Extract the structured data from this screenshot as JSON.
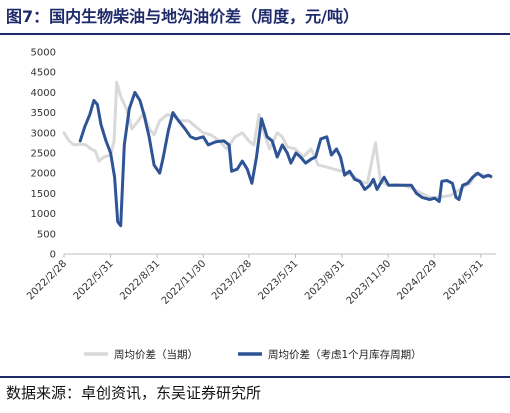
{
  "title": "图7：国内生物柴油与地沟油价差（周度，元/吨）",
  "source": "数据来源：卓创资讯，东吴证券研究所",
  "chart_data": {
    "type": "line",
    "ylim": [
      0,
      5000
    ],
    "yticks": [
      0,
      500,
      1000,
      1500,
      2000,
      2500,
      3000,
      3500,
      4000,
      4500,
      5000
    ],
    "x_dates": [
      "2022-02-28",
      "2024-06-30"
    ],
    "xtick_labels": [
      "2022/2/28",
      "2022/5/31",
      "2022/8/31",
      "2022/11/30",
      "2023/2/28",
      "2023/5/31",
      "2023/8/31",
      "2023/11/30",
      "2024/2/29",
      "2024/5/31"
    ],
    "xtick_dates": [
      "2022-02-28",
      "2022-05-31",
      "2022-08-31",
      "2022-11-30",
      "2023-02-28",
      "2023-05-31",
      "2023-08-31",
      "2023-11-30",
      "2024-02-29",
      "2024-05-31"
    ],
    "series": [
      {
        "name": "周均价差（当期）",
        "color": "#d9d9d9",
        "width": 3,
        "points": [
          [
            "2022-02-28",
            3000
          ],
          [
            "2022-03-10",
            2800
          ],
          [
            "2022-03-20",
            2700
          ],
          [
            "2022-04-01",
            2720
          ],
          [
            "2022-04-12",
            2700
          ],
          [
            "2022-04-22",
            2600
          ],
          [
            "2022-05-01",
            2550
          ],
          [
            "2022-05-08",
            2300
          ],
          [
            "2022-05-18",
            2400
          ],
          [
            "2022-05-31",
            2450
          ],
          [
            "2022-06-07",
            2800
          ],
          [
            "2022-06-12",
            4250
          ],
          [
            "2022-06-20",
            3900
          ],
          [
            "2022-07-01",
            3600
          ],
          [
            "2022-07-12",
            3100
          ],
          [
            "2022-07-25",
            3300
          ],
          [
            "2022-08-05",
            3500
          ],
          [
            "2022-08-15",
            3100
          ],
          [
            "2022-08-25",
            2950
          ],
          [
            "2022-09-05",
            3300
          ],
          [
            "2022-09-20",
            3450
          ],
          [
            "2022-10-01",
            3420
          ],
          [
            "2022-10-15",
            3300
          ],
          [
            "2022-11-01",
            3300
          ],
          [
            "2022-11-15",
            3150
          ],
          [
            "2022-11-30",
            3000
          ],
          [
            "2022-12-15",
            2950
          ],
          [
            "2023-01-01",
            2800
          ],
          [
            "2023-01-15",
            2600
          ],
          [
            "2023-02-01",
            2900
          ],
          [
            "2023-02-15",
            3000
          ],
          [
            "2023-02-28",
            2800
          ],
          [
            "2023-03-10",
            2700
          ],
          [
            "2023-03-20",
            3450
          ],
          [
            "2023-03-30",
            3000
          ],
          [
            "2023-04-10",
            2600
          ],
          [
            "2023-04-25",
            3000
          ],
          [
            "2023-05-05",
            2900
          ],
          [
            "2023-05-15",
            2650
          ],
          [
            "2023-05-31",
            2600
          ],
          [
            "2023-06-15",
            2400
          ],
          [
            "2023-07-01",
            2600
          ],
          [
            "2023-07-15",
            2200
          ],
          [
            "2023-08-01",
            2150
          ],
          [
            "2023-08-15",
            2100
          ],
          [
            "2023-09-01",
            2050
          ],
          [
            "2023-09-20",
            1950
          ],
          [
            "2023-10-05",
            1800
          ],
          [
            "2023-10-20",
            1750
          ],
          [
            "2023-11-05",
            2750
          ],
          [
            "2023-11-15",
            1800
          ],
          [
            "2023-11-30",
            1700
          ],
          [
            "2023-12-15",
            1720
          ],
          [
            "2024-01-01",
            1700
          ],
          [
            "2024-01-20",
            1600
          ],
          [
            "2024-02-05",
            1500
          ],
          [
            "2024-02-20",
            1400
          ],
          [
            "2024-03-10",
            1400
          ],
          [
            "2024-04-01",
            1450
          ],
          [
            "2024-04-20",
            1600
          ],
          [
            "2024-05-10",
            1750
          ],
          [
            "2024-05-20",
            2000
          ],
          [
            "2024-06-05",
            1950
          ],
          [
            "2024-06-20",
            1900
          ]
        ]
      },
      {
        "name": "周均价差（考虑1个月库存周期）",
        "color": "#2f5496",
        "width": 3,
        "points": [
          [
            "2022-04-01",
            2800
          ],
          [
            "2022-04-10",
            3150
          ],
          [
            "2022-04-20",
            3450
          ],
          [
            "2022-04-28",
            3800
          ],
          [
            "2022-05-05",
            3700
          ],
          [
            "2022-05-12",
            3200
          ],
          [
            "2022-05-22",
            2800
          ],
          [
            "2022-05-31",
            2500
          ],
          [
            "2022-06-08",
            1900
          ],
          [
            "2022-06-14",
            800
          ],
          [
            "2022-06-20",
            700
          ],
          [
            "2022-06-27",
            2700
          ],
          [
            "2022-07-07",
            3600
          ],
          [
            "2022-07-18",
            4000
          ],
          [
            "2022-07-28",
            3800
          ],
          [
            "2022-08-05",
            3450
          ],
          [
            "2022-08-15",
            2900
          ],
          [
            "2022-08-25",
            2200
          ],
          [
            "2022-09-05",
            2000
          ],
          [
            "2022-09-12",
            2400
          ],
          [
            "2022-09-22",
            3050
          ],
          [
            "2022-10-01",
            3500
          ],
          [
            "2022-10-12",
            3300
          ],
          [
            "2022-10-25",
            3100
          ],
          [
            "2022-11-05",
            2900
          ],
          [
            "2022-11-15",
            2850
          ],
          [
            "2022-11-30",
            2900
          ],
          [
            "2022-12-10",
            2700
          ],
          [
            "2022-12-25",
            2780
          ],
          [
            "2023-01-10",
            2800
          ],
          [
            "2023-01-20",
            2700
          ],
          [
            "2023-01-25",
            2050
          ],
          [
            "2023-02-05",
            2100
          ],
          [
            "2023-02-15",
            2300
          ],
          [
            "2023-02-25",
            2100
          ],
          [
            "2023-03-06",
            1750
          ],
          [
            "2023-03-15",
            2400
          ],
          [
            "2023-03-25",
            3350
          ],
          [
            "2023-04-05",
            2900
          ],
          [
            "2023-04-15",
            2800
          ],
          [
            "2023-04-25",
            2400
          ],
          [
            "2023-05-05",
            2700
          ],
          [
            "2023-05-15",
            2500
          ],
          [
            "2023-05-22",
            2250
          ],
          [
            "2023-06-01",
            2500
          ],
          [
            "2023-06-10",
            2400
          ],
          [
            "2023-06-20",
            2250
          ],
          [
            "2023-07-01",
            2350
          ],
          [
            "2023-07-10",
            2400
          ],
          [
            "2023-07-20",
            2850
          ],
          [
            "2023-08-01",
            2900
          ],
          [
            "2023-08-10",
            2450
          ],
          [
            "2023-08-20",
            2600
          ],
          [
            "2023-08-28",
            2400
          ],
          [
            "2023-09-05",
            1950
          ],
          [
            "2023-09-15",
            2050
          ],
          [
            "2023-09-25",
            1850
          ],
          [
            "2023-10-05",
            1800
          ],
          [
            "2023-10-15",
            1600
          ],
          [
            "2023-10-25",
            1700
          ],
          [
            "2023-11-01",
            1850
          ],
          [
            "2023-11-08",
            1600
          ],
          [
            "2023-11-15",
            1750
          ],
          [
            "2023-11-22",
            1900
          ],
          [
            "2023-12-01",
            1700
          ],
          [
            "2023-12-15",
            1700
          ],
          [
            "2024-01-01",
            1700
          ],
          [
            "2024-01-15",
            1700
          ],
          [
            "2024-01-25",
            1500
          ],
          [
            "2024-02-05",
            1400
          ],
          [
            "2024-02-20",
            1350
          ],
          [
            "2024-03-01",
            1380
          ],
          [
            "2024-03-10",
            1300
          ],
          [
            "2024-03-15",
            1800
          ],
          [
            "2024-03-25",
            1820
          ],
          [
            "2024-04-05",
            1750
          ],
          [
            "2024-04-12",
            1400
          ],
          [
            "2024-04-18",
            1350
          ],
          [
            "2024-04-25",
            1700
          ],
          [
            "2024-05-05",
            1750
          ],
          [
            "2024-05-15",
            1900
          ],
          [
            "2024-05-25",
            2000
          ],
          [
            "2024-06-05",
            1900
          ],
          [
            "2024-06-15",
            1950
          ],
          [
            "2024-06-20",
            1920
          ]
        ]
      }
    ],
    "grid": false,
    "legend": "bottom"
  }
}
